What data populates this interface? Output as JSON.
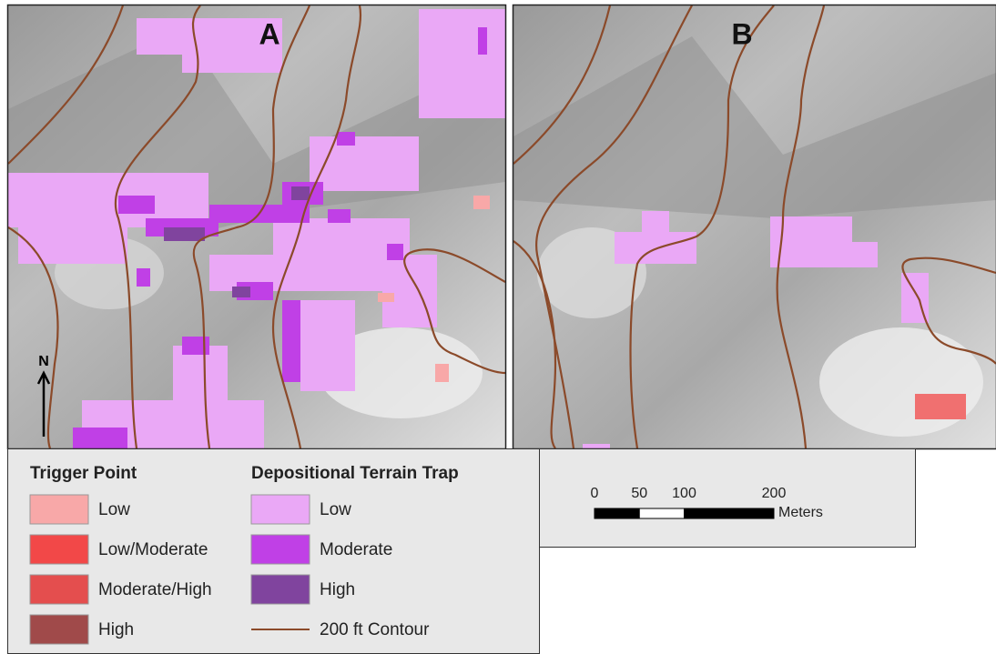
{
  "panels": [
    {
      "label": "A"
    },
    {
      "label": "B"
    }
  ],
  "north_arrow": "N",
  "legend": {
    "trigger_point": {
      "title": "Trigger Point",
      "items": [
        {
          "label": "Low",
          "color": "#f8a8a8"
        },
        {
          "label": "Low/Moderate",
          "color": "#f24848"
        },
        {
          "label": "Moderate/High",
          "color": "#e44e4e"
        },
        {
          "label": "High",
          "color": "#a04a4a"
        }
      ]
    },
    "terrain_trap": {
      "title": "Depositional Terrain Trap",
      "items": [
        {
          "label": "Low",
          "color": "#eaa8f6"
        },
        {
          "label": "Moderate",
          "color": "#c040e6"
        },
        {
          "label": "High",
          "color": "#80449e"
        }
      ],
      "contour": "200 ft Contour",
      "contour_color": "#8b4a2a"
    }
  },
  "scale_bar": {
    "ticks": [
      0,
      50,
      100,
      200
    ],
    "unit": "Meters"
  }
}
